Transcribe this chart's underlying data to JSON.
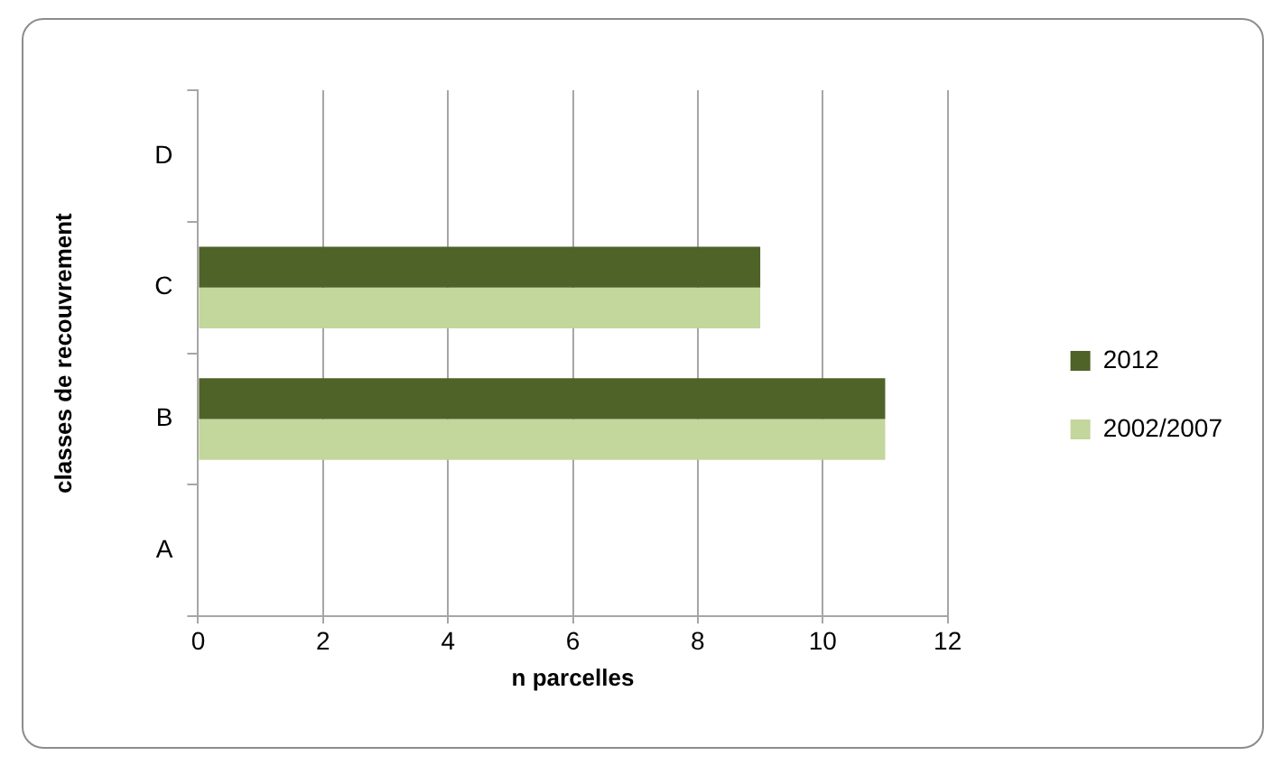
{
  "chart_data": {
    "type": "bar",
    "orientation": "horizontal",
    "xlabel": "n parcelles",
    "ylabel": "classes de recouvrement",
    "categories": [
      "D",
      "C",
      "B",
      "A"
    ],
    "series": [
      {
        "name": "2012",
        "color": "#4f6228",
        "values": [
          0,
          9,
          11,
          0
        ]
      },
      {
        "name": "2002/2007",
        "color": "#c3d69b",
        "values": [
          0,
          9,
          11,
          0
        ]
      }
    ],
    "xlim": [
      0,
      12
    ],
    "xticks": [
      0,
      2,
      4,
      6,
      8,
      10,
      12
    ],
    "grid": "x",
    "legend": "right"
  }
}
